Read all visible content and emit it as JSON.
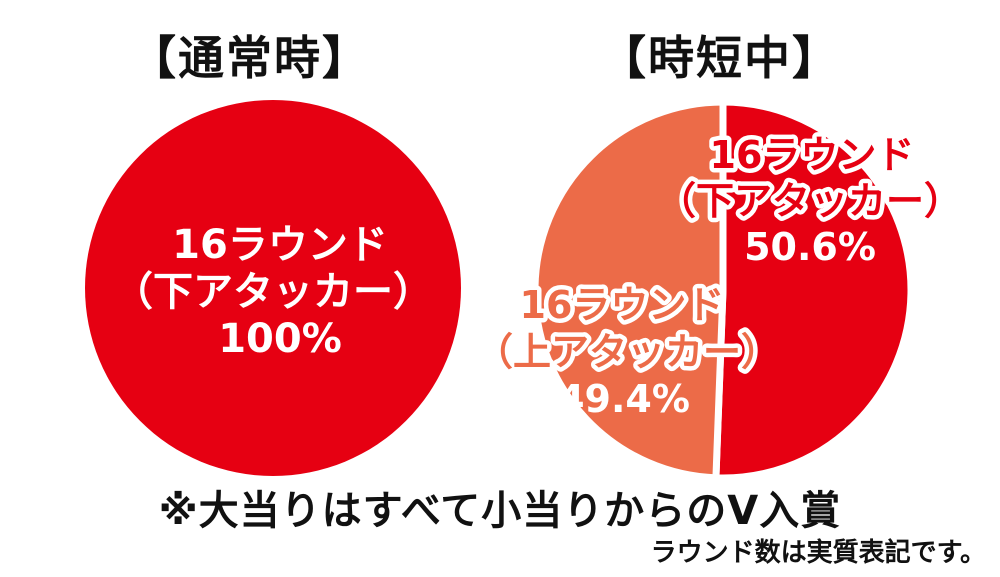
{
  "colors": {
    "primary_red": "#e60012",
    "secondary_orange": "#ec6b48",
    "text_dark": "#111111",
    "white": "#ffffff"
  },
  "footnote": "※大当りはすべて小当りからのV入賞",
  "note": "ラウンド数は実質表記です。",
  "chart_data": [
    {
      "type": "pie",
      "title": "【通常時】",
      "slices": [
        {
          "label_line1": "16ラウンド",
          "label_line2": "（下アタッカー）",
          "value": 100,
          "value_label": "100%",
          "color": "#e60012"
        }
      ]
    },
    {
      "type": "pie",
      "title": "【時短中】",
      "slices": [
        {
          "label_line1": "16ラウンド",
          "label_line2": "（下アタッカー）",
          "value": 50.6,
          "value_label": "50.6%",
          "color": "#e60012"
        },
        {
          "label_line1": "16ラウンド",
          "label_line2": "（上アタッカー）",
          "value": 49.4,
          "value_label": "49.4%",
          "color": "#ec6b48"
        }
      ]
    }
  ]
}
